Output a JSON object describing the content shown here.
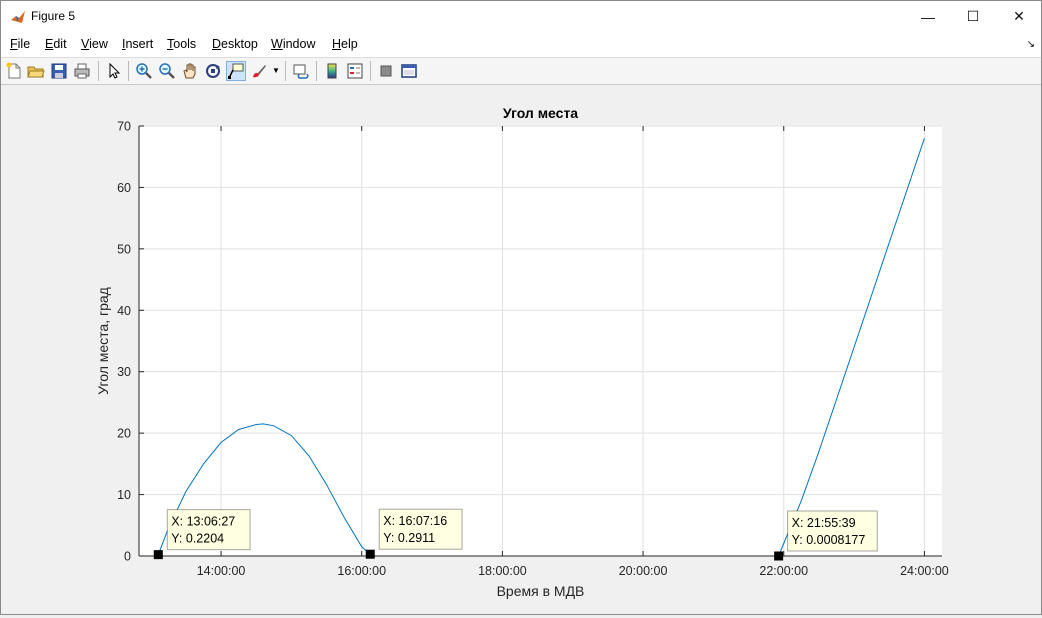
{
  "window": {
    "title": "Figure 5"
  },
  "menu": [
    "File",
    "Edit",
    "View",
    "Insert",
    "Tools",
    "Desktop",
    "Window",
    "Help"
  ],
  "toolbar_icons": [
    "new-figure-icon",
    "open-file-icon",
    "save-icon",
    "print-icon",
    "pointer-icon",
    "zoom-in-icon",
    "zoom-out-icon",
    "pan-icon",
    "rotate-3d-icon",
    "data-cursor-icon",
    "brush-icon",
    "link-plot-icon",
    "colorbar-icon",
    "legend-icon",
    "hide-plot-tools-icon",
    "show-plot-tools-icon"
  ],
  "chart_data": {
    "type": "line",
    "title": "Угол места",
    "xlabel": "Время в МДВ",
    "ylabel": "Угол места, град",
    "xlim": [
      "12:50:00",
      "24:15:00"
    ],
    "ylim": [
      0,
      70
    ],
    "xticks": [
      "14:00:00",
      "16:00:00",
      "18:00:00",
      "20:00:00",
      "22:00:00",
      "24:00:00"
    ],
    "yticks": [
      0,
      10,
      20,
      30,
      40,
      50,
      60,
      70
    ],
    "grid": true,
    "series": [
      {
        "color": "#0072bd",
        "segments": [
          {
            "x": [
              "13:06:27",
              "13:15:00",
              "13:30:00",
              "13:45:00",
              "14:00:00",
              "14:15:00",
              "14:30:00",
              "14:36:00",
              "14:45:00",
              "15:00:00",
              "15:15:00",
              "15:30:00",
              "15:45:00",
              "16:00:00",
              "16:07:16"
            ],
            "y": [
              0.2204,
              4.5,
              10.5,
              15.0,
              18.5,
              20.6,
              21.4,
              21.5,
              21.2,
              19.6,
              16.3,
              11.6,
              6.3,
              1.5,
              0.2911
            ]
          },
          {
            "x": [
              "21:55:39",
              "22:15:00",
              "22:30:00",
              "22:45:00",
              "23:00:00",
              "23:15:00",
              "23:30:00",
              "23:45:00",
              "24:00:00"
            ],
            "y": [
              0.0008177,
              9.0,
              17.0,
              25.5,
              34.0,
              42.5,
              51.0,
              59.5,
              68.0
            ]
          }
        ]
      }
    ],
    "datatips": [
      {
        "x": "13:06:27",
        "y": "0.2204",
        "x_label": "X: 13:06:27",
        "y_label": "Y: 0.2204"
      },
      {
        "x": "16:07:16",
        "y": "0.2911",
        "x_label": "X: 16:07:16",
        "y_label": "Y: 0.2911"
      },
      {
        "x": "21:55:39",
        "y": "0.0008177",
        "x_label": "X: 21:55:39",
        "y_label": "Y: 0.0008177"
      }
    ]
  }
}
